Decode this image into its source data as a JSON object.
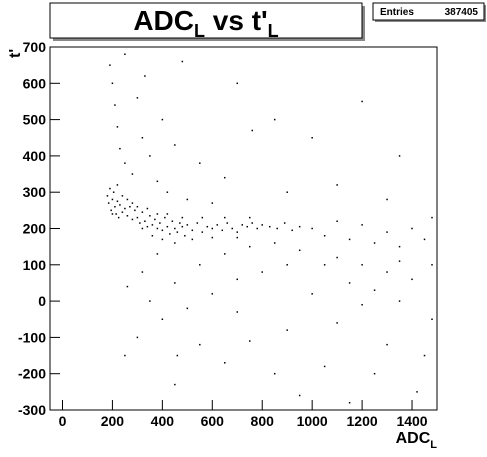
{
  "chart_data": {
    "type": "scatter",
    "title": {
      "text": "ADC",
      "subscript": "L",
      "text2": " vs t'",
      "subscript2": "L"
    },
    "x_label": {
      "text": "ADC",
      "subscript": "L"
    },
    "y_label": "t'",
    "stats": {
      "label": "Entries",
      "value": 387405
    },
    "color": "#000000",
    "xlim": [
      -50,
      1500
    ],
    "ylim": [
      -300,
      700
    ],
    "xticks": [
      0,
      200,
      400,
      600,
      800,
      1000,
      1200,
      1400
    ],
    "yticks": [
      -300,
      -200,
      -100,
      0,
      100,
      200,
      300,
      400,
      500,
      600,
      700
    ],
    "x": [
      180,
      185,
      190,
      195,
      200,
      205,
      210,
      215,
      220,
      225,
      230,
      240,
      250,
      260,
      270,
      280,
      290,
      300,
      310,
      320,
      330,
      340,
      350,
      360,
      370,
      380,
      390,
      400,
      410,
      420,
      430,
      440,
      450,
      460,
      470,
      480,
      490,
      500,
      520,
      540,
      560,
      580,
      600,
      620,
      640,
      660,
      680,
      700,
      720,
      740,
      760,
      780,
      800,
      830,
      860,
      890,
      920,
      950,
      200,
      220,
      240,
      260,
      280,
      300,
      320,
      340,
      360,
      380,
      400,
      420,
      450,
      480,
      520,
      560,
      600,
      650,
      700,
      750,
      190,
      200,
      210,
      220,
      230,
      250,
      280,
      300,
      320,
      350,
      380,
      420,
      500,
      600,
      250,
      330,
      400,
      450,
      550,
      650,
      700,
      850,
      1000,
      1200,
      1350,
      900,
      1100,
      1300,
      760,
      480,
      1000,
      1050,
      1100,
      1150,
      1200,
      1250,
      1300,
      1350,
      1400,
      1450,
      1480,
      1100,
      1200,
      1300,
      1400,
      900,
      800,
      700,
      600,
      500,
      400,
      300,
      250,
      700,
      900,
      1100,
      1300,
      1450,
      1000,
      1200,
      1350,
      1420,
      1250,
      1050,
      850,
      650,
      450,
      950,
      1150,
      550,
      750,
      350,
      450,
      550,
      650,
      750,
      850,
      950,
      1050,
      1150,
      1250,
      1350,
      1480,
      320,
      380,
      260,
      460,
      1480
    ],
    "y": [
      290,
      270,
      310,
      250,
      280,
      300,
      260,
      240,
      275,
      230,
      265,
      245,
      255,
      235,
      260,
      225,
      250,
      230,
      215,
      245,
      220,
      205,
      235,
      210,
      225,
      200,
      215,
      195,
      230,
      205,
      185,
      220,
      200,
      190,
      215,
      205,
      180,
      210,
      195,
      215,
      190,
      205,
      200,
      210,
      195,
      215,
      200,
      190,
      210,
      205,
      215,
      200,
      210,
      205,
      200,
      215,
      195,
      205,
      240,
      320,
      290,
      280,
      270,
      260,
      200,
      255,
      180,
      240,
      170,
      240,
      160,
      230,
      170,
      230,
      175,
      230,
      175,
      230,
      650,
      600,
      540,
      480,
      420,
      380,
      350,
      560,
      450,
      400,
      330,
      300,
      280,
      270,
      680,
      620,
      500,
      430,
      380,
      340,
      600,
      500,
      450,
      550,
      400,
      300,
      320,
      280,
      470,
      660,
      200,
      180,
      220,
      170,
      210,
      160,
      190,
      150,
      200,
      170,
      230,
      120,
      100,
      80,
      60,
      100,
      80,
      60,
      20,
      -20,
      -50,
      -100,
      -150,
      -30,
      -80,
      -60,
      -120,
      -150,
      20,
      -10,
      0,
      -250,
      -200,
      -180,
      -200,
      -170,
      -230,
      -260,
      -280,
      -120,
      -110,
      0,
      50,
      100,
      130,
      150,
      160,
      140,
      100,
      50,
      30,
      110,
      -50,
      80,
      130,
      40,
      -150,
      100
    ]
  }
}
